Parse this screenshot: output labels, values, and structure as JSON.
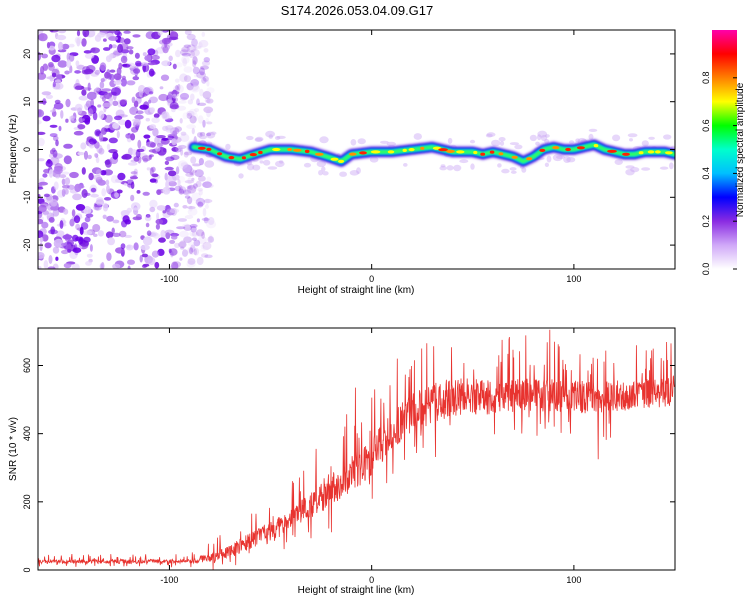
{
  "figure": {
    "title": "S174.2026.053.04.09.G17"
  },
  "chart_data": [
    {
      "type": "heatmap",
      "name": "spectrogram",
      "xlabel": "Height of straight line (km)",
      "ylabel": "Frequency (Hz)",
      "xlim": [
        -165,
        150
      ],
      "ylim": [
        -25,
        25
      ],
      "xticks": [
        -100,
        0,
        100
      ],
      "yticks": [
        -20,
        -10,
        0,
        10,
        20
      ],
      "noise_region_x": [
        -165,
        -85
      ],
      "signal_region_x": [
        -88,
        150
      ],
      "signal_track": {
        "x": [
          -88,
          -80,
          -72,
          -65,
          -58,
          -50,
          -40,
          -30,
          -22,
          -15,
          -10,
          0,
          10,
          20,
          30,
          40,
          50,
          55,
          60,
          65,
          70,
          75,
          80,
          85,
          90,
          95,
          100,
          105,
          110,
          115,
          120,
          125,
          130,
          135,
          140,
          145,
          150
        ],
        "y": [
          0.5,
          0,
          -1.5,
          -2,
          -1,
          0,
          0,
          -0.5,
          -1.5,
          -2.5,
          -1,
          -0.5,
          -0.5,
          0,
          0.5,
          -0.5,
          -0.5,
          -1,
          -0.5,
          -1,
          -1.5,
          -2.5,
          -1.5,
          0,
          0.5,
          0,
          0,
          0.5,
          1,
          0,
          -0.5,
          -1,
          -1,
          -0.5,
          -0.5,
          -0.5,
          -1
        ]
      },
      "colorbar": {
        "label": "Normalized spectral amplitude",
        "range": [
          0,
          1
        ],
        "ticks": [
          0.0,
          0.2,
          0.4,
          0.6,
          0.8
        ],
        "tick_labels": [
          "0.0",
          "0.2",
          "0.4",
          "0.6",
          "0.8"
        ],
        "colors": [
          "#ffffff",
          "#d0a8f8",
          "#8a2be2",
          "#0000ff",
          "#00bfff",
          "#00ffcc",
          "#00ff00",
          "#ffff00",
          "#ff8000",
          "#ff0000",
          "#ff00aa"
        ]
      }
    },
    {
      "type": "line",
      "name": "snr",
      "xlabel": "Height of straight line (km)",
      "ylabel": "SNR (10 * v/v)",
      "xlim": [
        -165,
        150
      ],
      "ylim": [
        0,
        710
      ],
      "xticks": [
        -100,
        0,
        100
      ],
      "yticks": [
        0,
        200,
        400,
        600
      ],
      "color": "#e8332f",
      "trend": {
        "x": [
          -165,
          -120,
          -90,
          -80,
          -70,
          -60,
          -50,
          -40,
          -30,
          -20,
          -10,
          0,
          10,
          20,
          30,
          40,
          60,
          80,
          100,
          110,
          120,
          140,
          150
        ],
        "y": [
          25,
          25,
          26,
          35,
          55,
          85,
          110,
          145,
          190,
          240,
          280,
          330,
          410,
          460,
          490,
          505,
          510,
          515,
          510,
          505,
          510,
          520,
          525
        ]
      },
      "noise_amplitude": {
        "x": [
          -165,
          -90,
          -70,
          -40,
          -10,
          10,
          30,
          60,
          100,
          150
        ],
        "y": [
          8,
          8,
          25,
          45,
          70,
          70,
          75,
          65,
          60,
          55
        ]
      },
      "spikes": [
        {
          "x": -8,
          "y": 535
        },
        {
          "x": 88,
          "y": 705
        },
        {
          "x": 112,
          "y": 325
        }
      ]
    }
  ]
}
